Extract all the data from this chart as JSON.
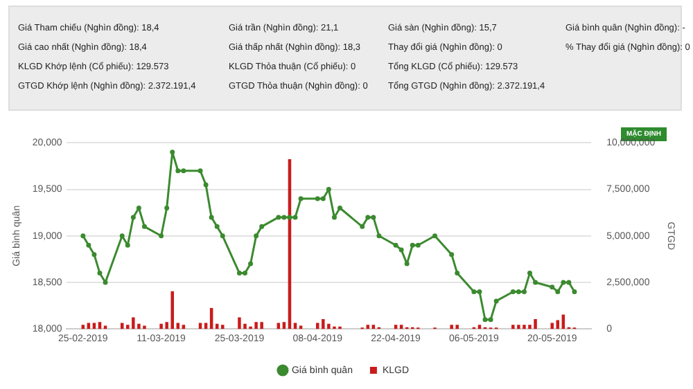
{
  "chart_data": {
    "type": "line",
    "ylabel": "Giá bình quân",
    "y2label": "GTGD",
    "annotations": [
      "Giá Tham chiếu (Nghìn đồng): 18,4",
      "Giá cao nhất (Nghìn đồng): 18,4",
      "KLGD Khớp lệnh (Cổ phiếu): 129.573",
      "GTGD Khớp lệnh (Nghìn đồng): 2.372.191,4",
      "Giá trần (Nghìn đồng): 21,1",
      "Giá thấp nhất (Nghìn đồng): 18,3",
      "KLGD Thỏa thuận (Cổ phiếu): 0",
      "GTGD Thỏa thuận (Nghìn đồng): 0",
      "Giá sàn (Nghìn đồng): 15,7",
      "Thay đổi giá (Nghìn đồng): 0",
      "Tổng KLGD (Cổ phiếu): 129.573",
      "Tổng GTGD (Nghìn đồng): 2.372.191,4",
      "Giá bình quân (Nghìn đồng): -",
      "% Thay đổi giá (Nghìn đồng): 0",
      "MẶC ĐỊNH"
    ],
    "x": [
      "2019-02-25",
      "2019-02-26",
      "2019-02-27",
      "2019-02-28",
      "2019-03-01",
      "2019-03-04",
      "2019-03-05",
      "2019-03-06",
      "2019-03-07",
      "2019-03-08",
      "2019-03-11",
      "2019-03-12",
      "2019-03-13",
      "2019-03-14",
      "2019-03-15",
      "2019-03-18",
      "2019-03-19",
      "2019-03-20",
      "2019-03-21",
      "2019-03-22",
      "2019-03-25",
      "2019-03-26",
      "2019-03-27",
      "2019-03-28",
      "2019-03-29",
      "2019-04-01",
      "2019-04-02",
      "2019-04-03",
      "2019-04-04",
      "2019-04-05",
      "2019-04-08",
      "2019-04-09",
      "2019-04-10",
      "2019-04-11",
      "2019-04-12",
      "2019-04-16",
      "2019-04-17",
      "2019-04-18",
      "2019-04-19",
      "2019-04-22",
      "2019-04-23",
      "2019-04-24",
      "2019-04-25",
      "2019-04-26",
      "2019-04-29",
      "2019-05-02",
      "2019-05-03",
      "2019-05-06",
      "2019-05-07",
      "2019-05-08",
      "2019-05-09",
      "2019-05-10",
      "2019-05-13",
      "2019-05-14",
      "2019-05-15",
      "2019-05-16",
      "2019-05-17",
      "2019-05-20",
      "2019-05-21",
      "2019-05-22",
      "2019-05-23",
      "2019-05-24"
    ],
    "series": [
      {
        "name": "Giá bình quân",
        "color": "#3b8a2f",
        "values": [
          19000,
          18900,
          18800,
          18600,
          18500,
          19000,
          18900,
          19200,
          19300,
          19100,
          19000,
          19300,
          19900,
          19700,
          19700,
          19700,
          19550,
          19200,
          19100,
          19000,
          18600,
          18600,
          18700,
          19000,
          19100,
          19200,
          19200,
          19200,
          19200,
          19400,
          19400,
          19400,
          19500,
          19200,
          19300,
          19100,
          19200,
          19200,
          19000,
          18900,
          18850,
          18700,
          18900,
          18900,
          19000,
          18800,
          18600,
          18400,
          18400,
          18100,
          18100,
          18300,
          18400,
          18400,
          18400,
          18600,
          18500,
          18450,
          18400,
          18500,
          18500,
          18400
        ]
      },
      {
        "name": "KLGD",
        "type": "bar",
        "axis": "y2",
        "color": "#c91c1c",
        "values": [
          200000,
          300000,
          300000,
          350000,
          150000,
          300000,
          200000,
          600000,
          250000,
          150000,
          250000,
          350000,
          2000000,
          300000,
          200000,
          300000,
          300000,
          1100000,
          250000,
          200000,
          600000,
          250000,
          100000,
          350000,
          350000,
          300000,
          350000,
          9100000,
          300000,
          150000,
          300000,
          500000,
          250000,
          100000,
          100000,
          50000,
          200000,
          200000,
          70000,
          200000,
          200000,
          70000,
          70000,
          50000,
          50000,
          200000,
          200000,
          70000,
          200000,
          70000,
          50000,
          50000,
          200000,
          200000,
          200000,
          200000,
          500000,
          300000,
          450000,
          750000,
          70000,
          50000
        ]
      }
    ],
    "xlim": [
      "2019-02-22",
      "2019-05-27"
    ],
    "xticks": [
      {
        "value": "2019-02-25",
        "label": "25-02-2019"
      },
      {
        "value": "2019-03-11",
        "label": "11-03-2019"
      },
      {
        "value": "2019-03-25",
        "label": "25-03-2019"
      },
      {
        "value": "2019-04-08",
        "label": "08-04-2019"
      },
      {
        "value": "2019-04-22",
        "label": "22-04-2019"
      },
      {
        "value": "2019-05-06",
        "label": "06-05-2019"
      },
      {
        "value": "2019-05-20",
        "label": "20-05-2019"
      }
    ],
    "ylim": [
      18000,
      20000
    ],
    "yticks": [
      {
        "value": 18000,
        "label": "18,000"
      },
      {
        "value": 18500,
        "label": "18,500"
      },
      {
        "value": 19000,
        "label": "19,000"
      },
      {
        "value": 19500,
        "label": "19,500"
      },
      {
        "value": 20000,
        "label": "20,000"
      }
    ],
    "y2lim": [
      0,
      10000000
    ],
    "y2ticks": [
      {
        "value": 0,
        "label": "0"
      },
      {
        "value": 2500000,
        "label": "2,500,000"
      },
      {
        "value": 5000000,
        "label": "5,000,000"
      },
      {
        "value": 7500000,
        "label": "7,500,000"
      },
      {
        "value": 10000000,
        "label": "10,000,000"
      }
    ],
    "grid": "y",
    "legend": "bottom",
    "marker": "circle",
    "line_style": "solid"
  }
}
